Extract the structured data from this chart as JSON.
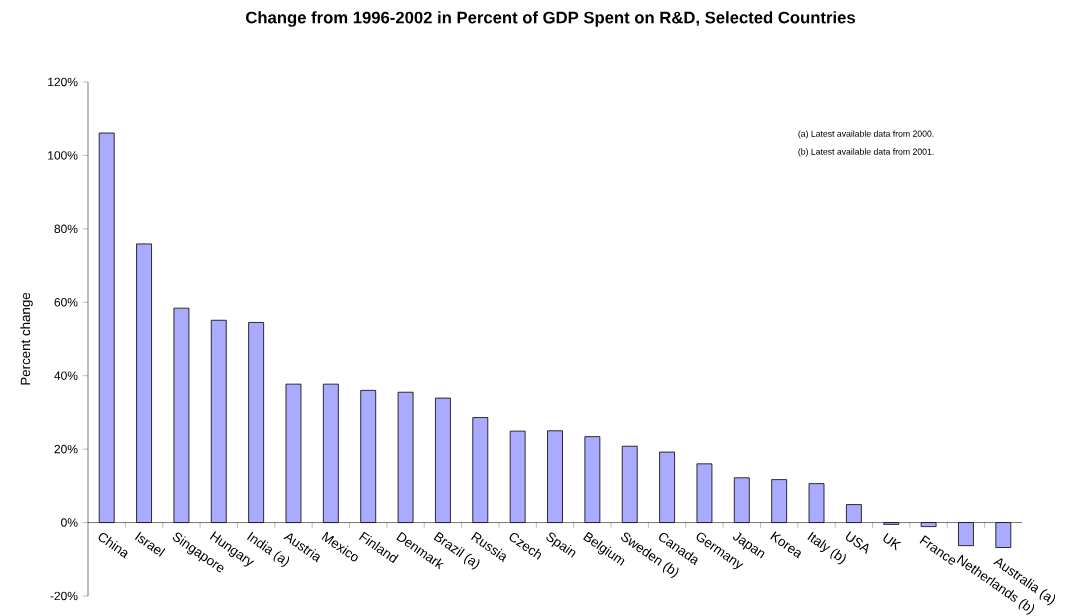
{
  "chart_data": {
    "type": "bar",
    "title": "Change from 1996-2002 in Percent of GDP Spent on R&D, Selected Countries",
    "ylabel": "Percent change",
    "annotations": [
      "(a) Latest available data from 2000.",
      "(b) Latest available data from 2001."
    ],
    "categories": [
      "China",
      "Israel",
      "Singapore",
      "Hungary",
      "India (a)",
      "Austria",
      "Mexico",
      "Finland",
      "Denmark",
      "Brazil (a)",
      "Russia",
      "Czech",
      "Spain",
      "Belgium",
      "Sweden (b)",
      "Canada",
      "Germany",
      "Japan",
      "Korea",
      "Italy (b)",
      "USA",
      "UK",
      "France",
      "Netherlands (b)",
      "Australia (a)"
    ],
    "values": [
      106.1,
      75.9,
      58.4,
      55.1,
      54.5,
      37.7,
      37.7,
      36.0,
      35.5,
      33.9,
      28.6,
      24.9,
      25.0,
      23.4,
      20.8,
      19.2,
      16.0,
      12.2,
      11.7,
      10.6,
      4.9,
      -0.5,
      -1.1,
      -6.3,
      -6.8
    ],
    "color": "#aaaaff",
    "ylim": [
      -20,
      120
    ],
    "yticks": [
      {
        "value": -20,
        "label": "-20%"
      },
      {
        "value": 0,
        "label": "0%"
      },
      {
        "value": 20,
        "label": "20%"
      },
      {
        "value": 40,
        "label": "40%"
      },
      {
        "value": 60,
        "label": "60%"
      },
      {
        "value": 80,
        "label": "80%"
      },
      {
        "value": 100,
        "label": "100%"
      },
      {
        "value": 120,
        "label": "120%"
      }
    ],
    "grid": false
  }
}
